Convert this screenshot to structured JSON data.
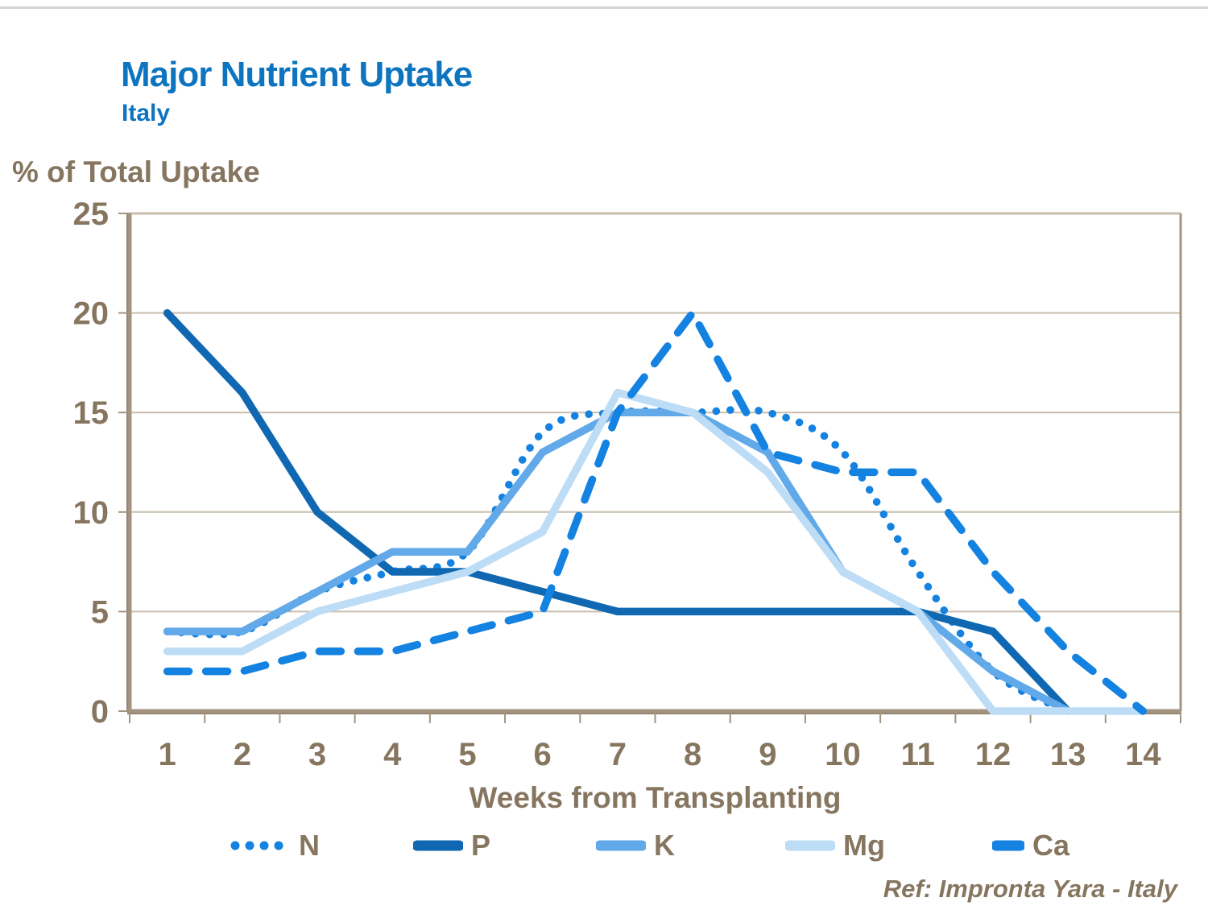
{
  "header": {
    "title": "Major Nutrient Uptake",
    "subtitle": "Italy"
  },
  "y_axis_caption": "% of Total Uptake",
  "ref_text": "Ref: Impronta Yara - Italy",
  "colors": {
    "title_blue": "#0d74c0",
    "text_brown": "#867660",
    "gridline": "#c9bdae",
    "axis": "#a3947f",
    "axis_shadow": "#8c7f6b"
  },
  "chart_data": {
    "type": "line",
    "title": "Major Nutrient Uptake",
    "xlabel": "Weeks from Transplanting",
    "ylabel": "% of Total Uptake",
    "x": [
      1,
      2,
      3,
      4,
      5,
      6,
      7,
      8,
      9,
      10,
      11,
      12,
      13,
      14
    ],
    "x_ticklabels": [
      "1",
      "2",
      "3",
      "4",
      "5",
      "6",
      "7",
      "8",
      "9",
      "10",
      "11",
      "12",
      "13",
      "14"
    ],
    "y_ticklabels": [
      "0",
      "5",
      "10",
      "15",
      "20",
      "25"
    ],
    "ylim": [
      0,
      25
    ],
    "ytick_interval": 5,
    "grid": "horizontal",
    "legend_position": "bottom",
    "series": [
      {
        "name": "N",
        "color": "#1382e0",
        "style": "dotted",
        "smooth": true,
        "values": [
          4,
          4,
          6,
          7,
          8,
          14,
          15,
          15,
          15,
          13,
          7,
          2,
          0,
          null
        ]
      },
      {
        "name": "P",
        "color": "#1068b2",
        "style": "solid",
        "smooth": false,
        "values": [
          20,
          16,
          10,
          7,
          7,
          6,
          5,
          5,
          5,
          5,
          5,
          4,
          0,
          null
        ]
      },
      {
        "name": "K",
        "color": "#61a9e9",
        "style": "solid",
        "smooth": false,
        "values": [
          4,
          4,
          6,
          8,
          8,
          13,
          15,
          15,
          13,
          7,
          5,
          2,
          0,
          null
        ]
      },
      {
        "name": "Mg",
        "color": "#bddcf6",
        "style": "solid",
        "smooth": false,
        "values": [
          3,
          3,
          5,
          6,
          7,
          9,
          16,
          15,
          12,
          7,
          5,
          0,
          0,
          0
        ]
      },
      {
        "name": "Ca",
        "color": "#1382e0",
        "style": "dashed",
        "smooth": false,
        "values": [
          2,
          2,
          3,
          3,
          4,
          5,
          15,
          20,
          13,
          12,
          12,
          7,
          3,
          0
        ]
      }
    ]
  }
}
